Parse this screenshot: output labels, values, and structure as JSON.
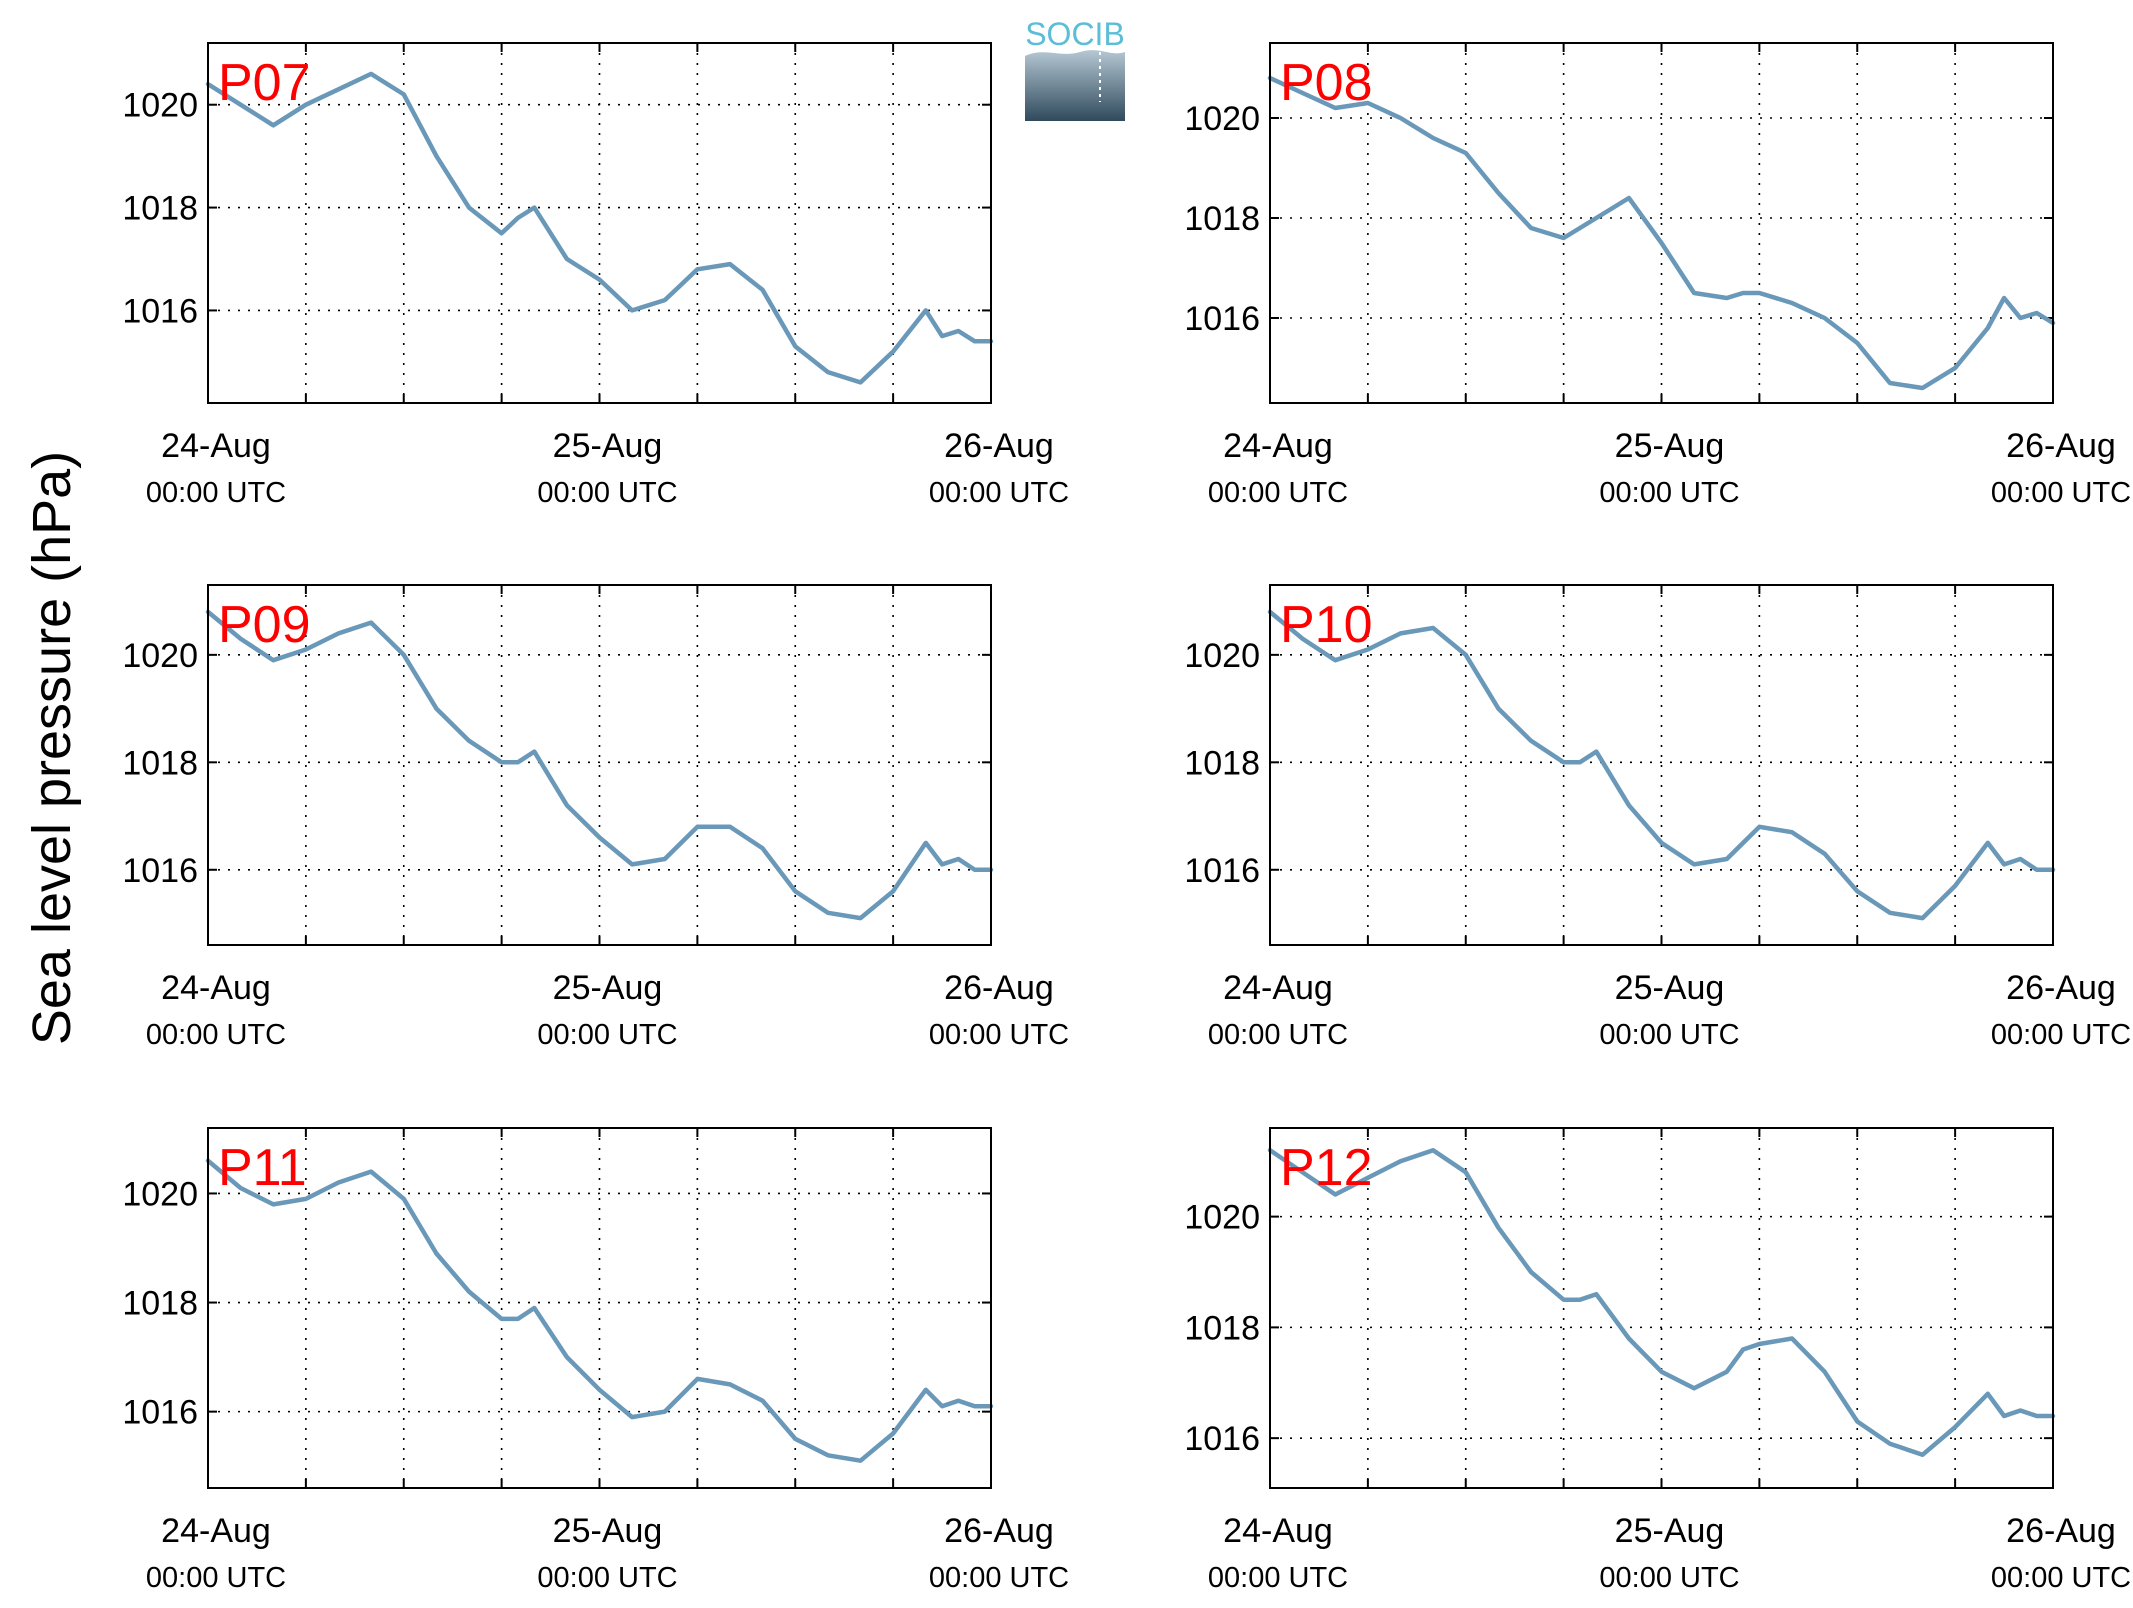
{
  "figure": {
    "ylabel": "Sea level pressure (hPa)",
    "logo_text": "SOCIB",
    "colors": {
      "line": "#6a98b9",
      "title": "#ff0000",
      "axis": "#000000",
      "logo_text": "#5bbdd6",
      "logo_top": "#b5c7d3",
      "logo_bottom": "#2f4a5c"
    }
  },
  "chart_data": [
    {
      "type": "line",
      "title": "P07",
      "ylim": [
        1014.2,
        1021.2
      ],
      "yticks": [
        1016,
        1018,
        1020
      ],
      "xlim": [
        0,
        48
      ],
      "xticks": [
        {
          "date": "24-Aug",
          "time": "00:00 UTC"
        },
        {
          "date": "25-Aug",
          "time": "00:00 UTC"
        },
        {
          "date": "26-Aug",
          "time": "00:00 UTC"
        }
      ],
      "grid": true,
      "x": [
        0,
        2,
        4,
        6,
        8,
        10,
        12,
        14,
        16,
        18,
        19,
        20,
        22,
        24,
        26,
        28,
        29,
        30,
        32,
        34,
        36,
        38,
        40,
        42,
        44,
        45,
        46,
        47,
        48
      ],
      "y": [
        1020.4,
        1020,
        1019.6,
        1020,
        1020.3,
        1020.6,
        1020.2,
        1019,
        1018,
        1017.5,
        1017.8,
        1018,
        1017,
        1016.6,
        1016,
        1016.2,
        1016.5,
        1016.8,
        1016.9,
        1016.4,
        1015.3,
        1014.8,
        1014.6,
        1015.2,
        1016,
        1015.5,
        1015.6,
        1015.4,
        1015.4
      ]
    },
    {
      "type": "line",
      "title": "P08",
      "ylim": [
        1014.3,
        1021.5
      ],
      "yticks": [
        1016,
        1018,
        1020
      ],
      "xlim": [
        0,
        48
      ],
      "xticks": [
        {
          "date": "24-Aug",
          "time": "00:00 UTC"
        },
        {
          "date": "25-Aug",
          "time": "00:00 UTC"
        },
        {
          "date": "26-Aug",
          "time": "00:00 UTC"
        }
      ],
      "grid": true,
      "x": [
        0,
        2,
        4,
        6,
        8,
        10,
        12,
        14,
        16,
        18,
        20,
        22,
        24,
        26,
        28,
        29,
        30,
        32,
        34,
        36,
        38,
        40,
        42,
        44,
        45,
        46,
        47,
        48
      ],
      "y": [
        1020.8,
        1020.5,
        1020.2,
        1020.3,
        1020,
        1019.6,
        1019.3,
        1018.5,
        1017.8,
        1017.6,
        1018,
        1018.4,
        1017.5,
        1016.5,
        1016.4,
        1016.5,
        1016.5,
        1016.3,
        1016,
        1015.5,
        1014.7,
        1014.6,
        1015,
        1015.8,
        1016.4,
        1016,
        1016.1,
        1015.9
      ]
    },
    {
      "type": "line",
      "title": "P09",
      "ylim": [
        1014.6,
        1021.3
      ],
      "yticks": [
        1016,
        1018,
        1020
      ],
      "xlim": [
        0,
        48
      ],
      "xticks": [
        {
          "date": "24-Aug",
          "time": "00:00 UTC"
        },
        {
          "date": "25-Aug",
          "time": "00:00 UTC"
        },
        {
          "date": "26-Aug",
          "time": "00:00 UTC"
        }
      ],
      "grid": true,
      "x": [
        0,
        2,
        4,
        6,
        8,
        10,
        12,
        14,
        16,
        18,
        19,
        20,
        22,
        24,
        26,
        28,
        29,
        30,
        32,
        34,
        36,
        38,
        40,
        42,
        44,
        45,
        46,
        47,
        48
      ],
      "y": [
        1020.8,
        1020.3,
        1019.9,
        1020.1,
        1020.4,
        1020.6,
        1020,
        1019,
        1018.4,
        1018,
        1018,
        1018.2,
        1017.2,
        1016.6,
        1016.1,
        1016.2,
        1016.5,
        1016.8,
        1016.8,
        1016.4,
        1015.6,
        1015.2,
        1015.1,
        1015.6,
        1016.5,
        1016.1,
        1016.2,
        1016,
        1016
      ]
    },
    {
      "type": "line",
      "title": "P10",
      "ylim": [
        1014.6,
        1021.3
      ],
      "yticks": [
        1016,
        1018,
        1020
      ],
      "xlim": [
        0,
        48
      ],
      "xticks": [
        {
          "date": "24-Aug",
          "time": "00:00 UTC"
        },
        {
          "date": "25-Aug",
          "time": "00:00 UTC"
        },
        {
          "date": "26-Aug",
          "time": "00:00 UTC"
        }
      ],
      "grid": true,
      "x": [
        0,
        2,
        4,
        6,
        8,
        10,
        12,
        14,
        16,
        18,
        19,
        20,
        22,
        24,
        26,
        28,
        29,
        30,
        32,
        34,
        36,
        38,
        40,
        42,
        44,
        45,
        46,
        47,
        48
      ],
      "y": [
        1020.8,
        1020.3,
        1019.9,
        1020.1,
        1020.4,
        1020.5,
        1020,
        1019,
        1018.4,
        1018,
        1018,
        1018.2,
        1017.2,
        1016.5,
        1016.1,
        1016.2,
        1016.5,
        1016.8,
        1016.7,
        1016.3,
        1015.6,
        1015.2,
        1015.1,
        1015.7,
        1016.5,
        1016.1,
        1016.2,
        1016,
        1016
      ]
    },
    {
      "type": "line",
      "title": "P11",
      "ylim": [
        1014.6,
        1021.2
      ],
      "yticks": [
        1016,
        1018,
        1020
      ],
      "xlim": [
        0,
        48
      ],
      "xticks": [
        {
          "date": "24-Aug",
          "time": "00:00 UTC"
        },
        {
          "date": "25-Aug",
          "time": "00:00 UTC"
        },
        {
          "date": "26-Aug",
          "time": "00:00 UTC"
        }
      ],
      "grid": true,
      "x": [
        0,
        2,
        4,
        6,
        8,
        10,
        12,
        14,
        16,
        18,
        19,
        20,
        22,
        24,
        26,
        28,
        29,
        30,
        32,
        34,
        36,
        38,
        40,
        42,
        44,
        45,
        46,
        47,
        48
      ],
      "y": [
        1020.6,
        1020.1,
        1019.8,
        1019.9,
        1020.2,
        1020.4,
        1019.9,
        1018.9,
        1018.2,
        1017.7,
        1017.7,
        1017.9,
        1017,
        1016.4,
        1015.9,
        1016,
        1016.3,
        1016.6,
        1016.5,
        1016.2,
        1015.5,
        1015.2,
        1015.1,
        1015.6,
        1016.4,
        1016.1,
        1016.2,
        1016.1,
        1016.1
      ]
    },
    {
      "type": "line",
      "title": "P12",
      "ylim": [
        1015.1,
        1021.6
      ],
      "yticks": [
        1016,
        1018,
        1020
      ],
      "xlim": [
        0,
        48
      ],
      "xticks": [
        {
          "date": "24-Aug",
          "time": "00:00 UTC"
        },
        {
          "date": "25-Aug",
          "time": "00:00 UTC"
        },
        {
          "date": "26-Aug",
          "time": "00:00 UTC"
        }
      ],
      "grid": true,
      "x": [
        0,
        2,
        4,
        6,
        8,
        10,
        12,
        14,
        16,
        18,
        19,
        20,
        22,
        24,
        26,
        28,
        29,
        30,
        32,
        34,
        36,
        38,
        40,
        42,
        44,
        45,
        46,
        47,
        48
      ],
      "y": [
        1021.2,
        1020.8,
        1020.4,
        1020.7,
        1021,
        1021.2,
        1020.8,
        1019.8,
        1019,
        1018.5,
        1018.5,
        1018.6,
        1017.8,
        1017.2,
        1016.9,
        1017.2,
        1017.6,
        1017.7,
        1017.8,
        1017.2,
        1016.3,
        1015.9,
        1015.7,
        1016.2,
        1016.8,
        1016.4,
        1016.5,
        1016.4,
        1016.4
      ]
    }
  ]
}
